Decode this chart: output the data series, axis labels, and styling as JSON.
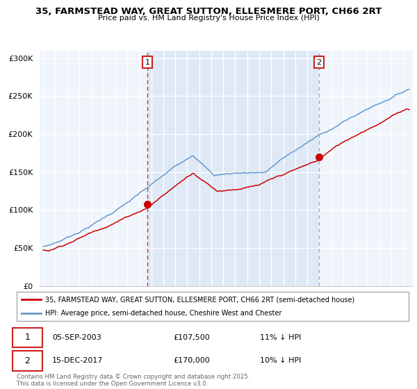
{
  "title_line1": "35, FARMSTEAD WAY, GREAT SUTTON, ELLESMERE PORT, CH66 2RT",
  "title_line2": "Price paid vs. HM Land Registry's House Price Index (HPI)",
  "hpi_color": "#6699cc",
  "hpi_fill_color": "#dce8f5",
  "price_color": "#cc0000",
  "bg_color": "#f0f5fb",
  "shaded_color": "#dce8f5",
  "annotation1_date": "05-SEP-2003",
  "annotation1_price": "£107,500",
  "annotation1_hpi": "11% ↓ HPI",
  "annotation1_year": 2003.67,
  "annotation1_value": 107500,
  "annotation2_date": "15-DEC-2017",
  "annotation2_price": "£170,000",
  "annotation2_hpi": "10% ↓ HPI",
  "annotation2_year": 2017.96,
  "annotation2_value": 170000,
  "legend_label1": "35, FARMSTEAD WAY, GREAT SUTTON, ELLESMERE PORT, CH66 2RT (semi-detached house)",
  "legend_label2": "HPI: Average price, semi-detached house, Cheshire West and Chester",
  "footer": "Contains HM Land Registry data © Crown copyright and database right 2025.\nThis data is licensed under the Open Government Licence v3.0.",
  "ylim": [
    0,
    310000
  ],
  "yticks": [
    0,
    50000,
    100000,
    150000,
    200000,
    250000,
    300000
  ],
  "ytick_labels": [
    "£0",
    "£50K",
    "£100K",
    "£150K",
    "£200K",
    "£250K",
    "£300K"
  ],
  "xstart": 1995,
  "xend": 2025
}
